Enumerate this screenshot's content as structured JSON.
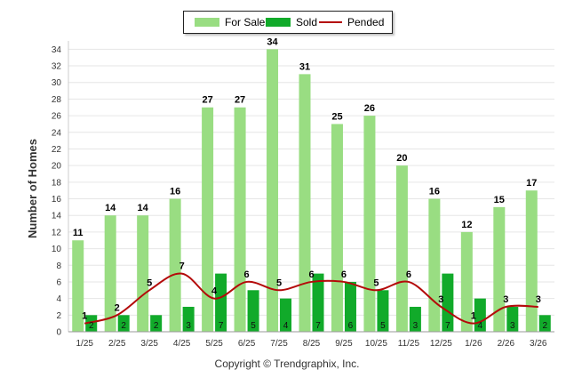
{
  "chart_data": {
    "type": "bar",
    "categories": [
      "1/25",
      "2/25",
      "3/25",
      "4/25",
      "5/25",
      "6/25",
      "7/25",
      "8/25",
      "9/25",
      "10/25",
      "11/25",
      "12/25",
      "1/26",
      "2/26",
      "3/26"
    ],
    "series": [
      {
        "name": "For Sale",
        "kind": "bar",
        "color": "#99dd82",
        "values": [
          11,
          14,
          14,
          16,
          27,
          27,
          34,
          31,
          25,
          26,
          20,
          16,
          12,
          15,
          17
        ]
      },
      {
        "name": "Sold",
        "kind": "bar",
        "color": "#11aa2a",
        "values": [
          2,
          2,
          2,
          3,
          7,
          5,
          4,
          7,
          6,
          5,
          3,
          7,
          4,
          3,
          2
        ]
      },
      {
        "name": "Pended",
        "kind": "line",
        "color": "#b40a0a",
        "values": [
          1,
          2,
          5,
          7,
          4,
          6,
          5,
          6,
          6,
          5,
          6,
          3,
          1,
          3,
          3
        ]
      }
    ],
    "ylabel": "Number of Homes",
    "xlabel": "",
    "ylim": [
      0,
      35
    ],
    "yticks": [
      0,
      2,
      4,
      6,
      8,
      10,
      12,
      14,
      16,
      18,
      20,
      22,
      24,
      26,
      28,
      30,
      32,
      34
    ],
    "grid": true,
    "legend_position": "top-center"
  },
  "legend": {
    "for_sale": "For Sale",
    "sold": "Sold",
    "pended": "Pended"
  },
  "copyright": "Copyright © Trendgraphix, Inc."
}
